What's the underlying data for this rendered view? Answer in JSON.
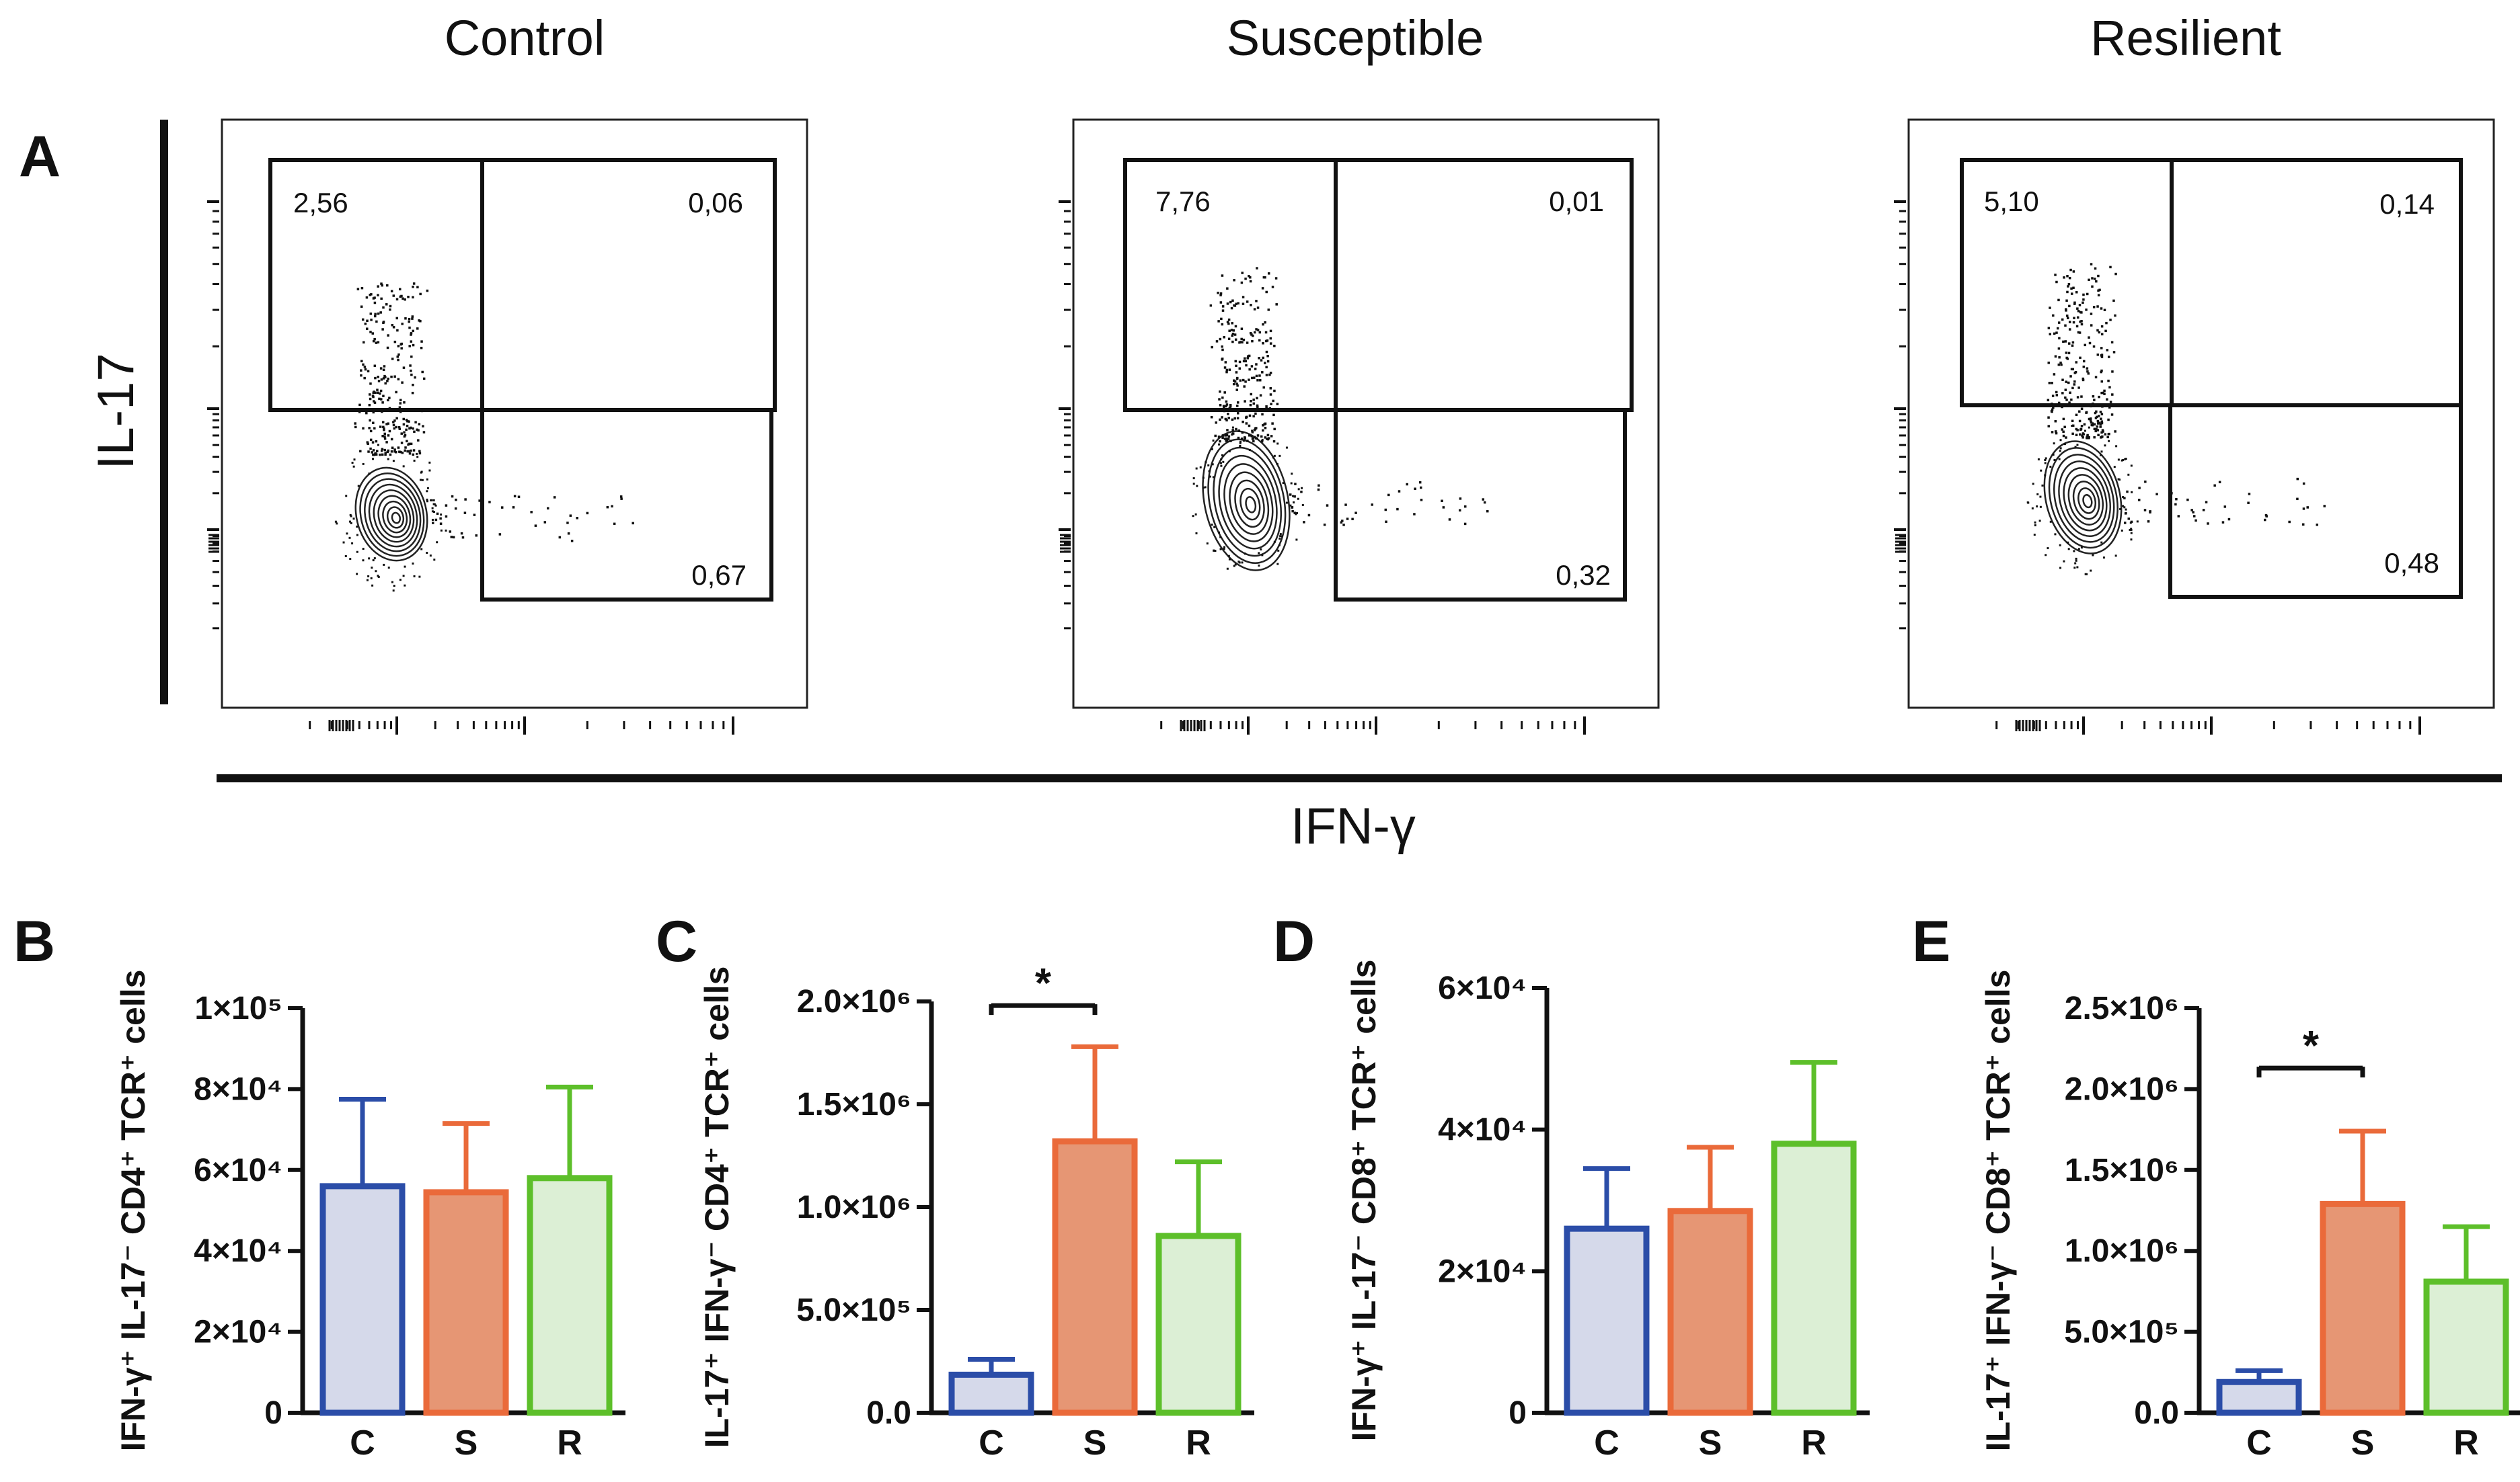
{
  "flow": {
    "panel_letter": "A",
    "y_axis_label": "IL-17",
    "x_axis_label": "IFN-γ",
    "plots": [
      {
        "title": "Control",
        "gates": {
          "top_left": "2,56",
          "top_right": "0,06",
          "bottom_right": "0,67"
        }
      },
      {
        "title": "Susceptible",
        "gates": {
          "top_left": "7,76",
          "top_right": "0,01",
          "bottom_right": "0,32"
        }
      },
      {
        "title": "Resilient",
        "gates": {
          "top_left": "5,10",
          "top_right": "0,14",
          "bottom_right": "0,48"
        }
      }
    ]
  },
  "chart_data": [
    {
      "type": "bar",
      "panel": "B",
      "ylabel": "IFN-γ⁺ IL-17⁻ CD4⁺ TCR⁺ cells",
      "categories": [
        "C",
        "S",
        "R"
      ],
      "values": [
        56000,
        54500,
        58000
      ],
      "errors": [
        21500,
        17000,
        22500
      ],
      "ylim": [
        0,
        100000
      ],
      "yticks": [
        0,
        20000,
        40000,
        60000,
        80000,
        100000
      ],
      "ytick_labels": [
        "0",
        "2×10⁴",
        "4×10⁴",
        "6×10⁴",
        "8×10⁴",
        "1×10⁵"
      ],
      "significance": []
    },
    {
      "type": "bar",
      "panel": "C",
      "ylabel": "IL-17⁺ IFN-γ⁻ CD4⁺ TCR⁺ cells",
      "categories": [
        "C",
        "S",
        "R"
      ],
      "values": [
        185000,
        1320000,
        860000
      ],
      "errors": [
        75000,
        460000,
        360000
      ],
      "ylim": [
        0,
        2000000
      ],
      "yticks": [
        0,
        500000,
        1000000,
        1500000,
        2000000
      ],
      "ytick_labels": [
        "0.0",
        "5.0×10⁵",
        "1.0×10⁶",
        "1.5×10⁶",
        "2.0×10⁶"
      ],
      "significance": [
        {
          "from": "C",
          "to": "S",
          "label": "*",
          "y": 1980000
        }
      ]
    },
    {
      "type": "bar",
      "panel": "D",
      "ylabel": "IFN-γ⁺ IL-17⁻ CD8⁺ TCR⁺ cells",
      "categories": [
        "C",
        "S",
        "R"
      ],
      "values": [
        26000,
        28500,
        38000
      ],
      "errors": [
        8500,
        9000,
        11500
      ],
      "ylim": [
        0,
        60000
      ],
      "yticks": [
        0,
        20000,
        40000,
        60000
      ],
      "ytick_labels": [
        "0",
        "2×10⁴",
        "4×10⁴",
        "6×10⁴"
      ],
      "significance": []
    },
    {
      "type": "bar",
      "panel": "E",
      "ylabel": "IL-17⁺ IFN-γ⁻ CD8⁺ TCR⁺ cells",
      "categories": [
        "C",
        "S",
        "R"
      ],
      "values": [
        190000,
        1290000,
        810000
      ],
      "errors": [
        70000,
        450000,
        340000
      ],
      "ylim": [
        0,
        2500000
      ],
      "yticks": [
        0,
        500000,
        1000000,
        1500000,
        2000000,
        2500000
      ],
      "ytick_labels": [
        "0.0",
        "5.0×10⁵",
        "1.0×10⁶",
        "1.5×10⁶",
        "2.0×10⁶",
        "2.5×10⁶"
      ],
      "significance": [
        {
          "from": "C",
          "to": "S",
          "label": "*",
          "y": 2130000
        }
      ]
    }
  ],
  "colors": {
    "C": {
      "edge": "#2b4da8",
      "fill": "#d5d9ea"
    },
    "S": {
      "edge": "#ea6a3a",
      "fill": "#e69674"
    },
    "R": {
      "edge": "#5dbf2a",
      "fill": "#dcefd5"
    },
    "ink": "#111111"
  }
}
